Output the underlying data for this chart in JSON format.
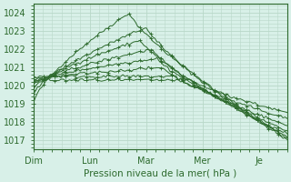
{
  "title": "",
  "xlabel": "Pression niveau de la mer( hPa )",
  "ylabel": "",
  "ylim": [
    1016.5,
    1024.5
  ],
  "yticks": [
    1017,
    1018,
    1019,
    1020,
    1021,
    1022,
    1023,
    1024
  ],
  "xtick_positions": [
    0,
    1,
    2,
    3,
    4
  ],
  "xtick_labels": [
    "Dim",
    "Lun",
    "Mar",
    "Mer",
    "Je"
  ],
  "bg_color": "#d8f0e8",
  "grid_color": "#b8d8c8",
  "line_color": "#2d6a2d",
  "xlim": [
    0,
    4.5
  ]
}
